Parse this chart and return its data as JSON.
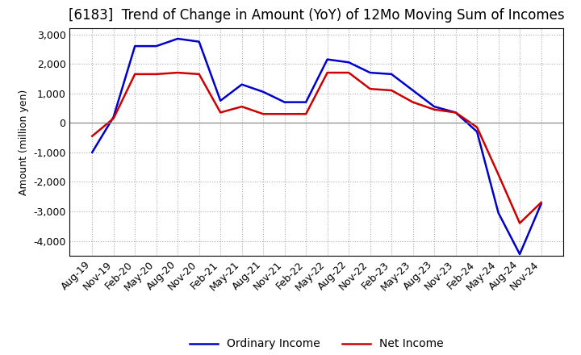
{
  "title": "[6183]  Trend of Change in Amount (YoY) of 12Mo Moving Sum of Incomes",
  "ylabel": "Amount (million yen)",
  "ylim": [
    -4500,
    3200
  ],
  "yticks": [
    -4000,
    -3000,
    -2000,
    -1000,
    0,
    1000,
    2000,
    3000
  ],
  "x_labels": [
    "Aug-19",
    "Nov-19",
    "Feb-20",
    "May-20",
    "Aug-20",
    "Nov-20",
    "Feb-21",
    "May-21",
    "Aug-21",
    "Nov-21",
    "Feb-22",
    "May-22",
    "Aug-22",
    "Nov-22",
    "Feb-23",
    "May-23",
    "Aug-23",
    "Nov-23",
    "Feb-24",
    "May-24",
    "Aug-24",
    "Nov-24"
  ],
  "ordinary_income": [
    -1000,
    200,
    2600,
    2600,
    2850,
    2750,
    750,
    1300,
    1050,
    700,
    700,
    2150,
    2050,
    1700,
    1650,
    1100,
    550,
    350,
    -300,
    -3050,
    -4450,
    -2750
  ],
  "net_income": [
    -450,
    150,
    1650,
    1650,
    1700,
    1650,
    350,
    550,
    300,
    300,
    300,
    1700,
    1700,
    1150,
    1100,
    700,
    450,
    350,
    -150,
    -1750,
    -3400,
    -2700
  ],
  "ordinary_color": "#0000cc",
  "net_color": "#cc0000",
  "background_color": "#ffffff",
  "grid_color": "#aaaaaa",
  "title_fontsize": 12,
  "legend_fontsize": 10,
  "axis_fontsize": 9
}
